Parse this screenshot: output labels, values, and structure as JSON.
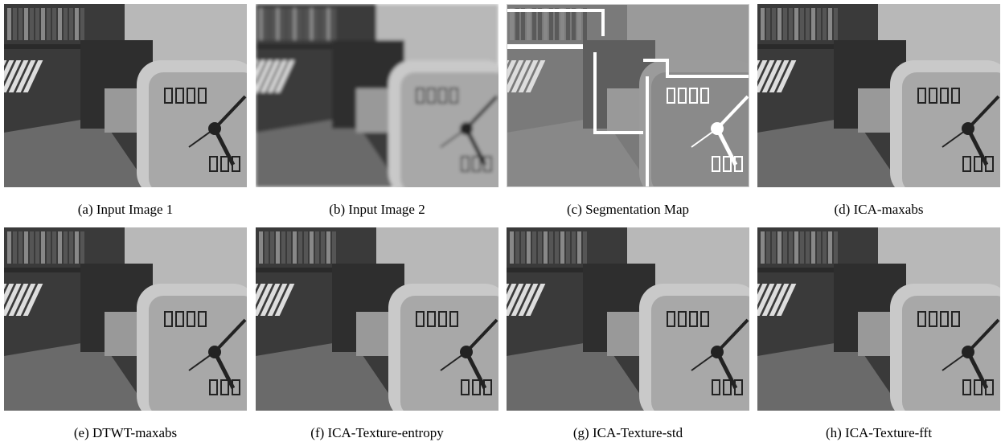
{
  "figure": {
    "panels": [
      {
        "label": "(a)",
        "caption": "Input Image 1"
      },
      {
        "label": "(b)",
        "caption": "Input Image 2"
      },
      {
        "label": "(c)",
        "caption": "Segmentation Map"
      },
      {
        "label": "(d)",
        "caption": "ICA-maxabs"
      },
      {
        "label": "(e)",
        "caption": "DTWT-maxabs"
      },
      {
        "label": "(f)",
        "caption": "ICA-Texture-entropy"
      },
      {
        "label": "(g)",
        "caption": "ICA-Texture-std"
      },
      {
        "label": "(h)",
        "caption": "ICA-Texture-fft"
      }
    ]
  }
}
